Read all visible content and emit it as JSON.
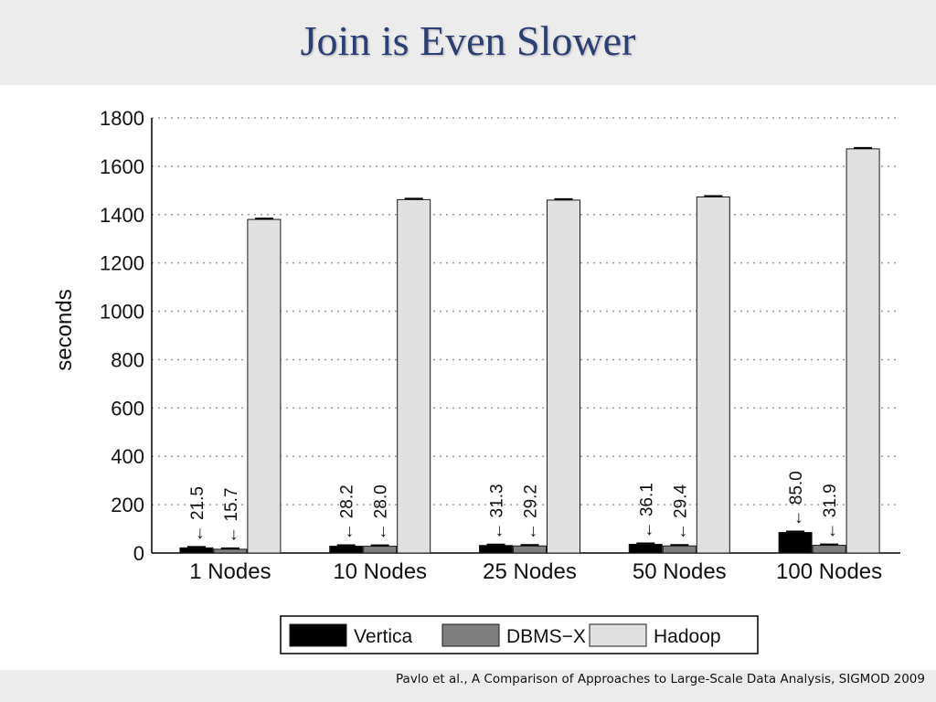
{
  "slide": {
    "title": "Join is Even Slower",
    "citation": "Pavlo et al., A Comparison of Approaches to Large-Scale Data Analysis, SIGMOD 2009"
  },
  "colors": {
    "title": "#2b3f73",
    "background": "#ececec",
    "panel": "#ffffff"
  },
  "chart_data": {
    "type": "bar",
    "title": "",
    "xlabel": "",
    "ylabel": "seconds",
    "ylim": [
      0,
      1800
    ],
    "yticks": [
      0,
      200,
      400,
      600,
      800,
      1000,
      1200,
      1400,
      1600,
      1800
    ],
    "grid": true,
    "legend_position": "bottom-right",
    "categories": [
      "1 Nodes",
      "10 Nodes",
      "25 Nodes",
      "50 Nodes",
      "100 Nodes"
    ],
    "series": [
      {
        "name": "Vertica",
        "color": "#000000",
        "values": [
          21.5,
          28.2,
          31.3,
          36.1,
          85.0
        ],
        "labels": [
          "21.5",
          "28.2",
          "31.3",
          "36.1",
          "85.0"
        ]
      },
      {
        "name": "DBMS−X",
        "color": "#7f7f7f",
        "values": [
          15.7,
          28.0,
          29.2,
          29.4,
          31.9
        ],
        "labels": [
          "15.7",
          "28.0",
          "29.2",
          "29.4",
          "31.9"
        ]
      },
      {
        "name": "Hadoop",
        "color": "#e0e0e0",
        "values": [
          1380,
          1462,
          1460,
          1473,
          1672
        ],
        "labels": []
      }
    ]
  }
}
